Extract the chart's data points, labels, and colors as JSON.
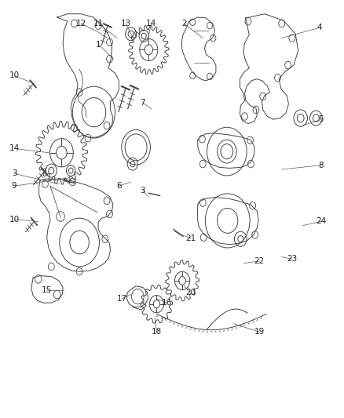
{
  "background_color": "#ffffff",
  "fig_width": 4.38,
  "fig_height": 5.33,
  "dpi": 100,
  "line_color": "#444444",
  "label_color": "#222222",
  "label_fontsize": 7.5,
  "callouts": [
    [
      1,
      0.285,
      0.895,
      0.33,
      0.86
    ],
    [
      2,
      0.535,
      0.945,
      0.59,
      0.91
    ],
    [
      3,
      0.04,
      0.585,
      0.17,
      0.56
    ],
    [
      3,
      0.415,
      0.545,
      0.43,
      0.53
    ],
    [
      4,
      0.93,
      0.935,
      0.82,
      0.91
    ],
    [
      5,
      0.935,
      0.715,
      0.88,
      0.7
    ],
    [
      6,
      0.345,
      0.555,
      0.38,
      0.565
    ],
    [
      7,
      0.415,
      0.755,
      0.44,
      0.74
    ],
    [
      8,
      0.935,
      0.605,
      0.82,
      0.595
    ],
    [
      9,
      0.04,
      0.555,
      0.2,
      0.575
    ],
    [
      10,
      0.04,
      0.82,
      0.1,
      0.8
    ],
    [
      10,
      0.04,
      0.475,
      0.11,
      0.47
    ],
    [
      11,
      0.285,
      0.945,
      0.34,
      0.91
    ],
    [
      12,
      0.235,
      0.945,
      0.295,
      0.92
    ],
    [
      13,
      0.365,
      0.945,
      0.39,
      0.905
    ],
    [
      14,
      0.04,
      0.645,
      0.14,
      0.635
    ],
    [
      14,
      0.44,
      0.945,
      0.43,
      0.91
    ],
    [
      15,
      0.135,
      0.305,
      0.185,
      0.305
    ],
    [
      16,
      0.485,
      0.275,
      0.455,
      0.285
    ],
    [
      17,
      0.355,
      0.285,
      0.38,
      0.295
    ],
    [
      18,
      0.455,
      0.205,
      0.45,
      0.24
    ],
    [
      19,
      0.755,
      0.205,
      0.68,
      0.225
    ],
    [
      20,
      0.555,
      0.3,
      0.535,
      0.315
    ],
    [
      21,
      0.555,
      0.43,
      0.52,
      0.44
    ],
    [
      22,
      0.755,
      0.375,
      0.71,
      0.37
    ],
    [
      23,
      0.85,
      0.38,
      0.82,
      0.385
    ],
    [
      24,
      0.935,
      0.47,
      0.88,
      0.46
    ]
  ]
}
